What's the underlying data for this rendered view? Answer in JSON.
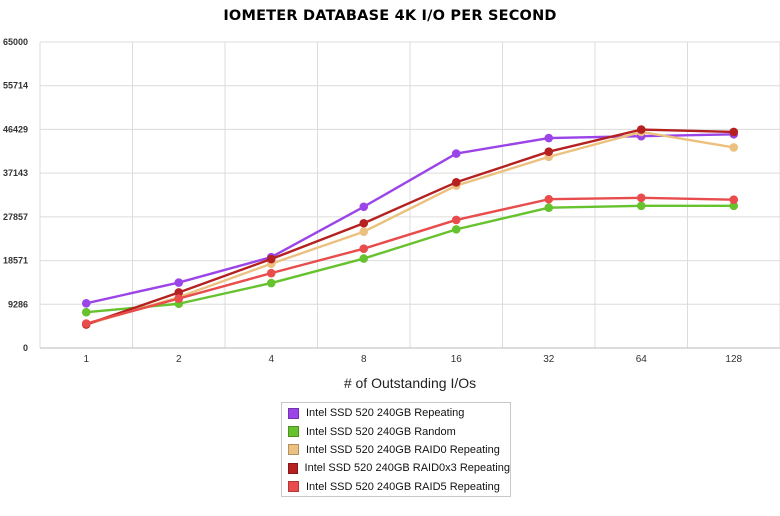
{
  "chart_data": {
    "type": "line",
    "title": "IOMETER DATABASE 4K I/O PER SECOND",
    "xlabel": "# of Outstanding I/Os",
    "ylabel": "",
    "categories": [
      "1",
      "2",
      "4",
      "8",
      "16",
      "32",
      "64",
      "128"
    ],
    "y_ticks": [
      "0",
      "9286",
      "18571",
      "27857",
      "37143",
      "46429",
      "55714",
      "65000"
    ],
    "ylim": [
      0,
      65000
    ],
    "grid": true,
    "legend_position": "bottom-center",
    "series": [
      {
        "name": "Intel SSD 520 240GB Repeating",
        "color": "#9b44e8",
        "values": [
          9500,
          13900,
          19300,
          30000,
          41300,
          44600,
          45000,
          45400
        ]
      },
      {
        "name": "Intel SSD 520 240GB Random",
        "color": "#66c22d",
        "values": [
          7600,
          9400,
          13800,
          19000,
          25200,
          29800,
          30200,
          30200
        ]
      },
      {
        "name": "Intel SSD 520 240GB RAID0 Repeating",
        "color": "#ecc07f",
        "values": [
          5000,
          10800,
          17900,
          24700,
          34500,
          40600,
          45900,
          42600
        ]
      },
      {
        "name": "Intel SSD 520 240GB RAID0x3 Repeating",
        "color": "#b52020",
        "values": [
          5000,
          11800,
          18900,
          26500,
          35200,
          41700,
          46400,
          45900
        ]
      },
      {
        "name": "Intel SSD 520 240GB RAID5 Repeating",
        "color": "#e84c4c",
        "values": [
          5200,
          10500,
          15900,
          21100,
          27200,
          31600,
          31900,
          31500
        ]
      }
    ]
  }
}
